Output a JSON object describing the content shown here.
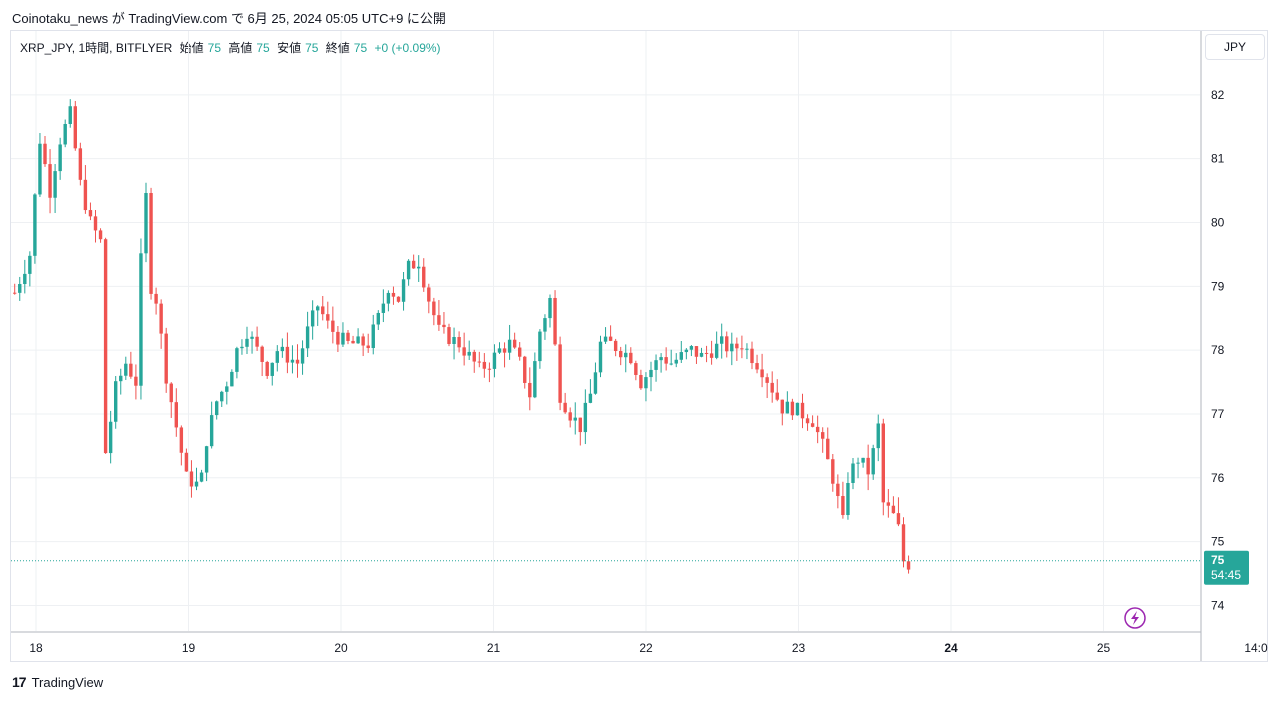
{
  "header": {
    "publish_line": "Coinotaku_news が TradingView.com で 6月 25, 2024 05:05 UTC+9 に公開"
  },
  "legend": {
    "symbol": "XRP_JPY, 1時間, BITFLYER",
    "open_label": "始値",
    "open_value": "75",
    "high_label": "高値",
    "high_value": "75",
    "low_label": "安値",
    "low_value": "75",
    "close_label": "終値",
    "close_value": "75",
    "change": "+0 (+0.09%)"
  },
  "currency_badge": "JPY",
  "price_badge": {
    "price": "75",
    "countdown": "54:45"
  },
  "footer": {
    "brand": "TradingView",
    "logo_text": "17"
  },
  "colors": {
    "up": "#26a69a",
    "down": "#ef5350",
    "grid": "#eef0f3",
    "axis_text": "#131722",
    "lightning": "#9c27b0"
  },
  "chart_data": {
    "type": "candlestick",
    "symbol": "XRP_JPY",
    "interval": "1時間",
    "exchange": "BITFLYER",
    "ylim": [
      73.6,
      83.0
    ],
    "y_ticks": [
      "74",
      "75",
      "76",
      "77",
      "78",
      "79",
      "80",
      "81",
      "82"
    ],
    "x_ticks": [
      "18",
      "19",
      "20",
      "21",
      "22",
      "23",
      "24",
      "25",
      "14:0"
    ],
    "x_tick_bold": [
      false,
      false,
      false,
      false,
      false,
      false,
      true,
      false,
      false
    ],
    "last_price": 74.7,
    "grid": true,
    "anchors": [
      [
        0,
        78.9
      ],
      [
        3,
        79.5
      ],
      [
        5,
        81.3
      ],
      [
        7,
        80.5
      ],
      [
        9,
        81.3
      ],
      [
        11,
        81.7
      ],
      [
        13,
        80.6
      ],
      [
        15,
        80.0
      ],
      [
        17,
        79.7
      ],
      [
        18,
        76.4
      ],
      [
        20,
        77.4
      ],
      [
        22,
        77.8
      ],
      [
        24,
        77.5
      ],
      [
        25,
        79.4
      ],
      [
        26,
        80.4
      ],
      [
        27,
        79.0
      ],
      [
        28,
        78.8
      ],
      [
        30,
        77.6
      ],
      [
        32,
        76.8
      ],
      [
        34,
        76.0
      ],
      [
        36,
        75.9
      ],
      [
        37,
        76.0
      ],
      [
        38,
        76.6
      ],
      [
        40,
        77.2
      ],
      [
        42,
        77.5
      ],
      [
        44,
        78.0
      ],
      [
        46,
        78.3
      ],
      [
        48,
        78.0
      ],
      [
        50,
        77.7
      ],
      [
        52,
        78.0
      ],
      [
        54,
        77.9
      ],
      [
        56,
        77.8
      ],
      [
        58,
        78.3
      ],
      [
        60,
        78.7
      ],
      [
        62,
        78.4
      ],
      [
        64,
        78.2
      ],
      [
        66,
        78.1
      ],
      [
        70,
        78.1
      ],
      [
        72,
        78.5
      ],
      [
        74,
        79.0
      ],
      [
        76,
        78.8
      ],
      [
        78,
        79.3
      ],
      [
        80,
        79.4
      ],
      [
        82,
        78.8
      ],
      [
        84,
        78.3
      ],
      [
        86,
        78.2
      ],
      [
        88,
        78.1
      ],
      [
        90,
        77.9
      ],
      [
        92,
        77.7
      ],
      [
        94,
        77.8
      ],
      [
        96,
        78.0
      ],
      [
        98,
        78.1
      ],
      [
        100,
        77.8
      ],
      [
        102,
        77.3
      ],
      [
        104,
        78.3
      ],
      [
        106,
        78.8
      ],
      [
        108,
        77.3
      ],
      [
        110,
        77.0
      ],
      [
        112,
        76.8
      ],
      [
        114,
        77.3
      ],
      [
        116,
        78.1
      ],
      [
        118,
        78.1
      ],
      [
        120,
        78.0
      ],
      [
        122,
        77.9
      ],
      [
        124,
        77.5
      ],
      [
        126,
        77.7
      ],
      [
        128,
        77.9
      ],
      [
        130,
        77.8
      ],
      [
        132,
        77.9
      ],
      [
        134,
        78.0
      ],
      [
        136,
        77.9
      ],
      [
        138,
        78.0
      ],
      [
        140,
        78.1
      ],
      [
        142,
        78.0
      ],
      [
        144,
        78.1
      ],
      [
        146,
        77.9
      ],
      [
        148,
        77.7
      ],
      [
        150,
        77.4
      ],
      [
        152,
        77.1
      ],
      [
        154,
        77.1
      ],
      [
        156,
        77.0
      ],
      [
        158,
        76.9
      ],
      [
        160,
        76.5
      ],
      [
        162,
        76.0
      ],
      [
        164,
        75.3
      ],
      [
        165,
        76.0
      ],
      [
        167,
        76.3
      ],
      [
        169,
        76.1
      ],
      [
        170,
        76.4
      ],
      [
        171,
        76.8
      ],
      [
        172,
        75.6
      ],
      [
        174,
        75.4
      ],
      [
        175,
        75.2
      ],
      [
        176,
        74.7
      ],
      [
        177,
        74.65
      ]
    ]
  }
}
